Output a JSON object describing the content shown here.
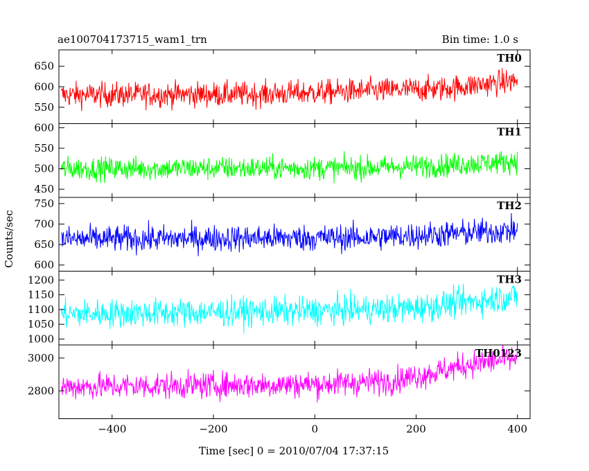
{
  "header": {
    "title": "ae100704173715_wam1_trn",
    "bin_time": "Bin time: 1.0 s"
  },
  "axes": {
    "ylabel": "Counts/sec",
    "xlabel": "Time [sec] 0 = 2010/07/04 17:37:15"
  },
  "chart_data": {
    "type": "line",
    "xlim": [
      -505,
      425
    ],
    "x_ticks": [
      -400,
      -200,
      0,
      200,
      400
    ],
    "x_range": [
      -500,
      400
    ],
    "bin_time_s": 1.0,
    "panels": [
      {
        "name": "TH0",
        "color": "#ff0000",
        "ylim": [
          510,
          690
        ],
        "y_ticks": [
          550,
          600,
          650
        ],
        "approx_level": [
          [
            -500,
            580
          ],
          [
            -100,
            582
          ],
          [
            100,
            590
          ],
          [
            250,
            595
          ],
          [
            400,
            615
          ]
        ],
        "noise_amplitude": 30
      },
      {
        "name": "TH1",
        "color": "#00ff00",
        "ylim": [
          430,
          610
        ],
        "y_ticks": [
          450,
          500,
          550,
          600
        ],
        "approx_level": [
          [
            -500,
            500
          ],
          [
            100,
            502
          ],
          [
            250,
            508
          ],
          [
            400,
            518
          ]
        ],
        "noise_amplitude": 28
      },
      {
        "name": "TH2",
        "color": "#0000ff",
        "ylim": [
          585,
          765
        ],
        "y_ticks": [
          600,
          650,
          700,
          750
        ],
        "approx_level": [
          [
            -500,
            663
          ],
          [
            100,
            667
          ],
          [
            250,
            675
          ],
          [
            400,
            685
          ]
        ],
        "noise_amplitude": 32
      },
      {
        "name": "TH3",
        "color": "#00ffff",
        "ylim": [
          980,
          1230
        ],
        "y_ticks": [
          1000,
          1050,
          1100,
          1150,
          1200
        ],
        "approx_level": [
          [
            -500,
            1085
          ],
          [
            0,
            1095
          ],
          [
            200,
            1105
          ],
          [
            300,
            1125
          ],
          [
            400,
            1145
          ]
        ],
        "noise_amplitude": 48
      },
      {
        "name": "TH0123",
        "color": "#ff00ff",
        "ylim": [
          2630,
          3080
        ],
        "y_ticks": [
          2800,
          3000
        ],
        "approx_level": [
          [
            -500,
            2825
          ],
          [
            0,
            2840
          ],
          [
            150,
            2860
          ],
          [
            250,
            2920
          ],
          [
            300,
            2960
          ],
          [
            400,
            3000
          ]
        ],
        "noise_amplitude": 80
      }
    ]
  }
}
